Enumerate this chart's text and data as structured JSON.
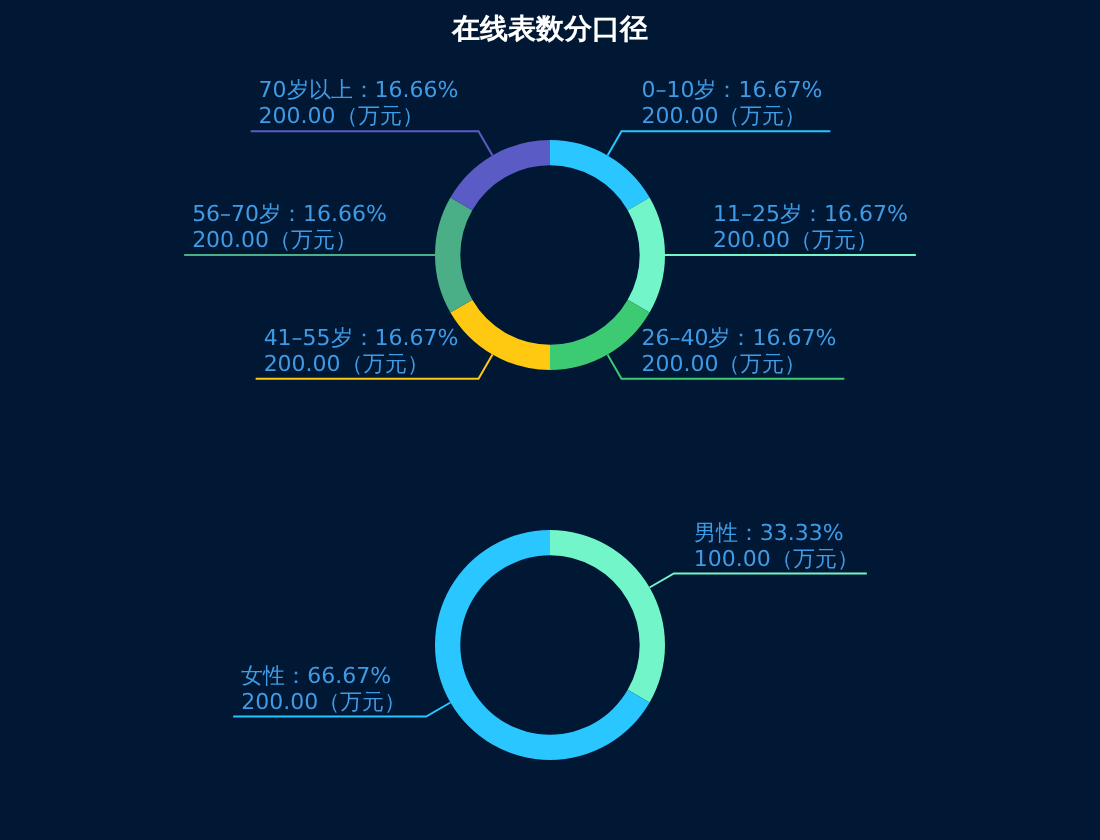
{
  "chart_data": [
    {
      "type": "donut",
      "title": "在线表数分口径",
      "categories": [
        "0–10岁",
        "11–25岁",
        "26–40岁",
        "41–55岁",
        "56–70岁",
        "70岁以上"
      ],
      "values": [
        200,
        200,
        200,
        200,
        200,
        200
      ],
      "colors": [
        "#29c6ff",
        "#72f5c9",
        "#3ccb73",
        "#ffc911",
        "#4aae86",
        "#5b5bc6"
      ],
      "value_labels": [
        "16.67%\n200.00（万元）",
        "16.67%\n200.00（万元）",
        "16.67%\n200.00（万元）",
        "16.67%\n200.00（万元）",
        "16.66%\n200.00（万元）",
        "16.66%\n200.00（万元）"
      ],
      "legend": false
    },
    {
      "type": "donut",
      "categories": [
        "男性",
        "女性"
      ],
      "values": [
        100,
        200
      ],
      "colors": [
        "#72f5c9",
        "#29c6ff"
      ],
      "value_labels": [
        "33.33%\n100.00（万元）",
        "66.67%\n200.00（万元）"
      ],
      "legend": false
    }
  ]
}
